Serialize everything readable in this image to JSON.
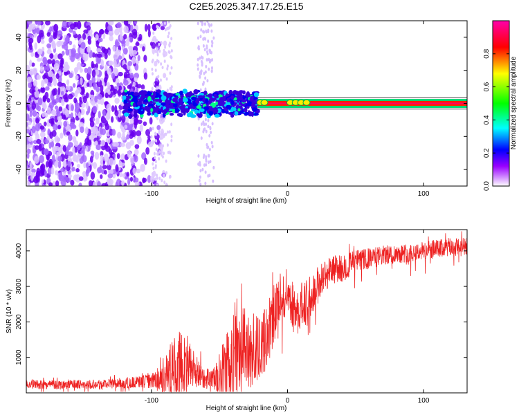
{
  "title": "C2E5.2025.347.17.25.E15",
  "chart_data": [
    {
      "type": "heatmap",
      "title": "C2E5.2025.347.17.25.E15",
      "xlabel": "Height of straight line (km)",
      "ylabel": "Frequency (Hz)",
      "xlim": [
        -192,
        132
      ],
      "ylim": [
        -50,
        50
      ],
      "xticks": [
        -100,
        0,
        100
      ],
      "yticks": [
        -40,
        -20,
        0,
        20,
        40
      ],
      "xtick_labels": [
        "-100",
        "0",
        "100"
      ],
      "ytick_labels": [
        "-40",
        "-20",
        "0",
        "20",
        "40"
      ],
      "features": {
        "noise_region_km": [
          -192,
          -100
        ],
        "band_region_km": [
          -120,
          -22
        ],
        "band_center_hz": 0,
        "band_half_width_hz": 7,
        "line_region_km": [
          -22,
          132
        ],
        "line_half_width_hz": 1.5,
        "vertical_smear_km": -60
      },
      "colorbar": {
        "label": "Normalized spectral amplitude",
        "range": [
          0,
          1
        ],
        "ticks": [
          0,
          0.2,
          0.4,
          0.6,
          0.8
        ],
        "tick_labels": [
          "0.0",
          "0.2",
          "0.4",
          "0.6",
          "0.8"
        ],
        "colors": [
          "#ffffff",
          "#6a00ff",
          "#0000ff",
          "#00ffff",
          "#00ff00",
          "#ffff00",
          "#ff0000",
          "#ff00ff"
        ]
      }
    },
    {
      "type": "line",
      "xlabel": "Height of straight line (km)",
      "ylabel": "SNR (10 * v/v)",
      "xlim": [
        -192,
        132
      ],
      "ylim": [
        0,
        4600
      ],
      "xticks": [
        -100,
        0,
        100
      ],
      "yticks": [
        1000,
        2000,
        3000,
        4000
      ],
      "xtick_labels": [
        "-100",
        "0",
        "100"
      ],
      "ytick_labels": [
        "1000",
        "2000",
        "3000",
        "4000"
      ],
      "color": "#ee2222",
      "series": [
        {
          "name": "SNR",
          "x": [
            -192,
            -170,
            -150,
            -130,
            -115,
            -100,
            -95,
            -90,
            -85,
            -80,
            -75,
            -70,
            -65,
            -60,
            -55,
            -50,
            -45,
            -40,
            -35,
            -30,
            -25,
            -20,
            -15,
            -10,
            -5,
            0,
            5,
            10,
            15,
            20,
            25,
            30,
            35,
            40,
            45,
            50,
            55,
            60,
            70,
            80,
            90,
            100,
            110,
            120,
            132
          ],
          "y": [
            250,
            230,
            240,
            260,
            290,
            330,
            380,
            520,
            700,
            850,
            900,
            700,
            520,
            420,
            350,
            400,
            800,
            1000,
            1250,
            1250,
            1200,
            1250,
            1600,
            2300,
            2700,
            2900,
            2300,
            2400,
            2600,
            2900,
            3200,
            3400,
            3500,
            3500,
            3600,
            3720,
            3750,
            3780,
            3870,
            3920,
            3950,
            4000,
            4050,
            4100,
            4100
          ],
          "spread": [
            130,
            130,
            130,
            140,
            160,
            200,
            350,
            550,
            800,
            900,
            900,
            600,
            400,
            300,
            350,
            700,
            1100,
            1200,
            1250,
            1100,
            1100,
            900,
            900,
            900,
            800,
            600,
            700,
            700,
            650,
            600,
            500,
            450,
            400,
            400,
            350,
            320,
            300,
            300,
            280,
            270,
            270,
            270,
            270,
            270,
            270
          ]
        }
      ]
    }
  ]
}
